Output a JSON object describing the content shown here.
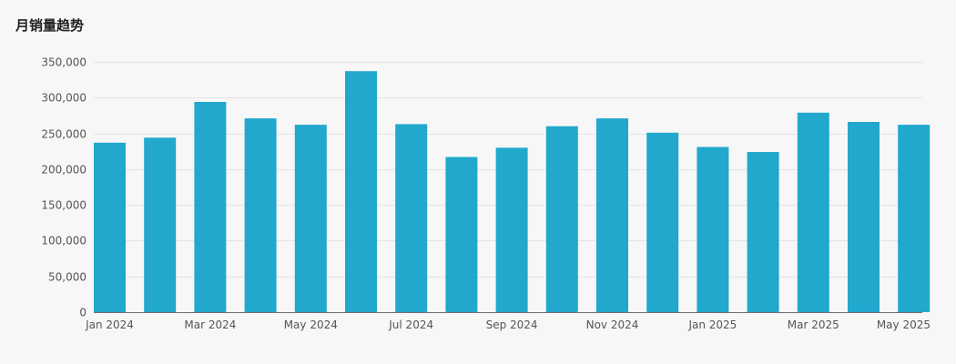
{
  "chart_data": {
    "type": "bar",
    "title": "月销量趋势",
    "xlabel": "",
    "ylabel": "",
    "ylim": [
      0,
      350000
    ],
    "yticks": [
      "0",
      "50,000",
      "100,000",
      "150,000",
      "200,000",
      "250,000",
      "300,000",
      "350,000"
    ],
    "ytick_values": [
      0,
      50000,
      100000,
      150000,
      200000,
      250000,
      300000,
      350000
    ],
    "grid": true,
    "legend": "none",
    "bar_color": "#22a8cc",
    "categories": [
      "Jan 2024",
      "Feb 2024",
      "Mar 2024",
      "Apr 2024",
      "May 2024",
      "Jun 2024",
      "Jul 2024",
      "Aug 2024",
      "Sep 2024",
      "Oct 2024",
      "Nov 2024",
      "Dec 2024",
      "Jan 2025",
      "Feb 2025",
      "Mar 2025",
      "Apr 2025",
      "May 2025"
    ],
    "xtick_labels": [
      "Jan 2024",
      "",
      "Mar 2024",
      "",
      "May 2024",
      "",
      "Jul 2024",
      "",
      "Sep 2024",
      "",
      "Nov 2024",
      "",
      "Jan 2025",
      "",
      "Mar 2025",
      "",
      "May 2025"
    ],
    "values": [
      237000,
      244000,
      294000,
      271000,
      262000,
      337000,
      263000,
      217000,
      230000,
      260000,
      271000,
      251000,
      231000,
      224000,
      279000,
      266000,
      262000
    ]
  }
}
